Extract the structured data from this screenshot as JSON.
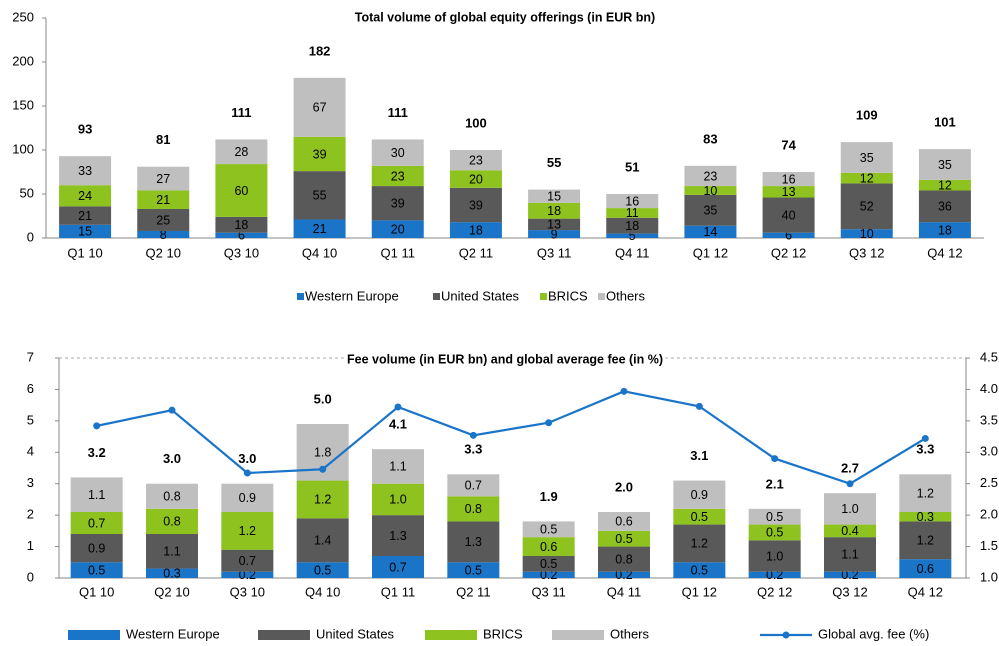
{
  "chart_data": [
    {
      "type": "bar",
      "stacked": true,
      "title": "Total  volume of global equity offerings (in EUR bn)",
      "categories": [
        "Q1 10",
        "Q2 10",
        "Q3 10",
        "Q4 10",
        "Q1 11",
        "Q2 11",
        "Q3 11",
        "Q4 11",
        "Q1 12",
        "Q2 12",
        "Q3 12",
        "Q4 12"
      ],
      "series": [
        {
          "name": "Western Europe",
          "color": "#1a75c9",
          "values": [
            15,
            8,
            6,
            21,
            20,
            18,
            9,
            5,
            14,
            6,
            10,
            18
          ]
        },
        {
          "name": "United States",
          "color": "#595959",
          "values": [
            21,
            25,
            18,
            55,
            39,
            39,
            13,
            18,
            35,
            40,
            52,
            36
          ]
        },
        {
          "name": "BRICS",
          "color": "#8dc21f",
          "values": [
            24,
            21,
            60,
            39,
            23,
            20,
            18,
            11,
            10,
            13,
            12,
            12
          ]
        },
        {
          "name": "Others",
          "color": "#bfbfbf",
          "values": [
            33,
            27,
            28,
            67,
            30,
            23,
            15,
            16,
            23,
            16,
            35,
            35
          ]
        }
      ],
      "totals": [
        93,
        81,
        111,
        182,
        111,
        100,
        55,
        51,
        83,
        74,
        109,
        101
      ],
      "ylim": [
        0,
        250
      ],
      "yticks": [
        0,
        50,
        100,
        150,
        200,
        250
      ],
      "legend": "bottom"
    },
    {
      "type": "bar",
      "stacked": true,
      "title": "Fee volume (in EUR bn) and global average fee (in %)",
      "categories": [
        "Q1 10",
        "Q2 10",
        "Q3 10",
        "Q4 10",
        "Q1 11",
        "Q2 11",
        "Q3 11",
        "Q4 11",
        "Q1 12",
        "Q2 12",
        "Q3 12",
        "Q4 12"
      ],
      "series": [
        {
          "name": "Western Europe",
          "color": "#1a75c9",
          "values": [
            0.5,
            0.3,
            0.2,
            0.5,
            0.7,
            0.5,
            0.2,
            0.2,
            0.5,
            0.2,
            0.2,
            0.6
          ]
        },
        {
          "name": "United States",
          "color": "#595959",
          "values": [
            0.9,
            1.1,
            0.7,
            1.4,
            1.3,
            1.3,
            0.5,
            0.8,
            1.2,
            1.0,
            1.1,
            1.2
          ],
          "value_labels": [
            "0.9",
            "1.1",
            "0.7",
            "1.4",
            "1.3",
            "1.3",
            "0.5",
            "0.8",
            "1.2",
            "1.0",
            "1.1",
            "1.2"
          ]
        },
        {
          "name": "BRICS",
          "color": "#8dc21f",
          "values": [
            0.7,
            0.8,
            1.2,
            1.2,
            1.0,
            0.8,
            0.6,
            0.5,
            0.5,
            0.5,
            0.4,
            0.3
          ],
          "value_labels": [
            "0.7",
            "0.8",
            "1.2",
            "1.2",
            "1.0",
            "0.8",
            "0.6",
            "0.5",
            "0.5",
            "0.5",
            "0.4",
            "0.3"
          ]
        },
        {
          "name": "Others",
          "color": "#bfbfbf",
          "values": [
            1.1,
            0.8,
            0.9,
            1.8,
            1.1,
            0.7,
            0.5,
            0.6,
            0.9,
            0.5,
            1.0,
            1.2
          ],
          "value_labels": [
            "1.1",
            "0.8",
            "0.9",
            "1.8",
            "1.1",
            "0.7",
            "0.5",
            "0.6",
            "0.9",
            "0.5",
            "1.0",
            "1.2"
          ]
        },
        {
          "name": "Global avg. fee (%)",
          "color": "#1a75c9",
          "type": "line",
          "axis": "y2",
          "values": [
            3.42,
            3.67,
            2.67,
            2.73,
            3.72,
            3.27,
            3.47,
            3.97,
            3.73,
            2.9,
            2.5,
            3.22
          ]
        }
      ],
      "totals": [
        3.2,
        3.0,
        3.0,
        5.0,
        4.1,
        3.3,
        1.9,
        2.0,
        3.1,
        2.1,
        2.7,
        3.3
      ],
      "total_labels": [
        "3.2",
        "3.0",
        "3.0",
        "5.0",
        "4.1",
        "3.3",
        "1.9",
        "2.0",
        "3.1",
        "2.1",
        "2.7",
        "3.3"
      ],
      "ylim": [
        0,
        7
      ],
      "yticks": [
        0,
        1,
        2,
        3,
        4,
        5,
        6,
        7
      ],
      "y2lim": [
        1.0,
        4.5
      ],
      "y2ticks": [
        {
          "value": 1.0,
          "label": "1.0"
        },
        1.5,
        {
          "value": 2.0,
          "label": "2.0"
        },
        2.5,
        {
          "value": 3.0,
          "label": "3.0"
        },
        3.5,
        {
          "value": 4.0,
          "label": "4.0"
        },
        4.5
      ],
      "legend": "bottom"
    }
  ]
}
